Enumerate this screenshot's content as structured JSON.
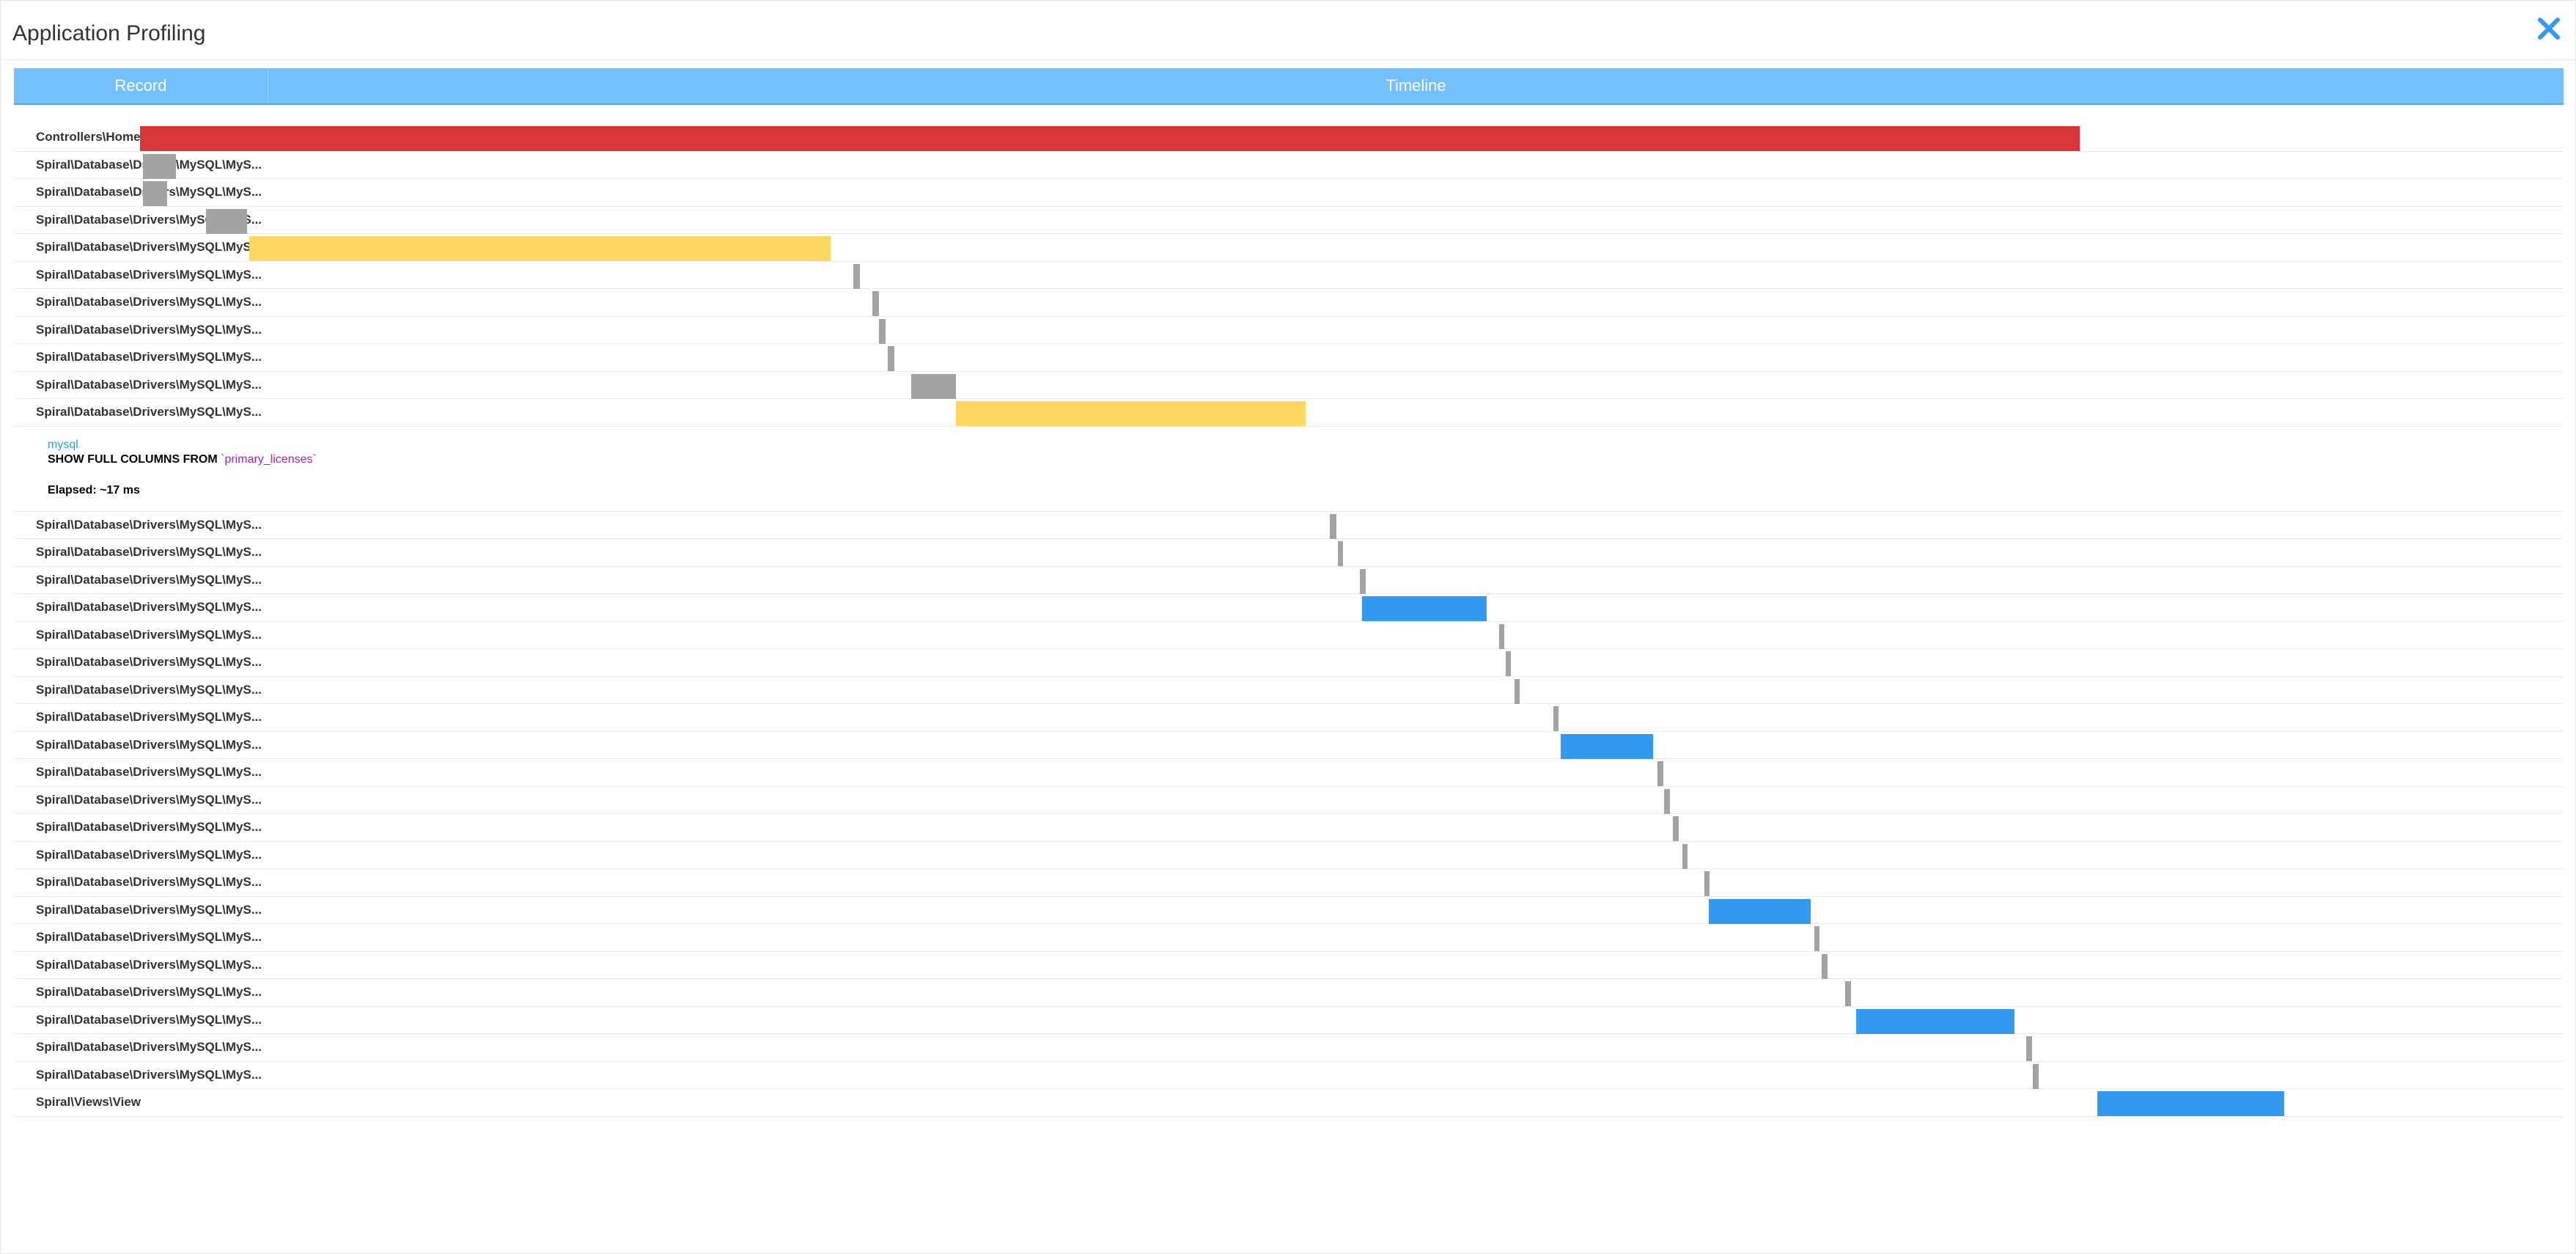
{
  "window": {
    "title": "Application Profiling",
    "close_icon": "close-icon"
  },
  "columns": {
    "record": "Record",
    "timeline": "Timeline"
  },
  "colors": {
    "header": "#74c0fc",
    "controller": "#d63638",
    "slow": "#ffd863",
    "fast": "#a3a3a3",
    "normal": "#339af0",
    "close": "#339af0"
  },
  "timeline_scale": {
    "min": 0,
    "max": 100
  },
  "rows_before": [
    {
      "label": "Controllers\\HomeController",
      "start": 5.67,
      "end": 93.0,
      "kind": "controller"
    },
    {
      "label": "Spiral\\Database\\Drivers\\MySQL\\MyS...",
      "start": 5.8,
      "end": 7.3,
      "kind": "fast"
    },
    {
      "label": "Spiral\\Database\\Drivers\\MySQL\\MyS...",
      "start": 5.8,
      "end": 6.9,
      "kind": "fast"
    },
    {
      "label": "Spiral\\Database\\Drivers\\MySQL\\MyS...",
      "start": 8.65,
      "end": 10.5,
      "kind": "fast"
    },
    {
      "label": "Spiral\\Database\\Drivers\\MySQL\\MyS...",
      "start": 10.6,
      "end": 36.75,
      "kind": "slow"
    },
    {
      "label": "Spiral\\Database\\Drivers\\MySQL\\MyS...",
      "start": 37.8,
      "end": 38.1,
      "kind": "fast"
    },
    {
      "label": "Spiral\\Database\\Drivers\\MySQL\\MyS...",
      "start": 38.65,
      "end": 38.95,
      "kind": "fast"
    },
    {
      "label": "Spiral\\Database\\Drivers\\MySQL\\MyS...",
      "start": 38.95,
      "end": 39.25,
      "kind": "fast"
    },
    {
      "label": "Spiral\\Database\\Drivers\\MySQL\\MyS...",
      "start": 39.35,
      "end": 39.65,
      "kind": "fast"
    },
    {
      "label": "Spiral\\Database\\Drivers\\MySQL\\MyS...",
      "start": 40.4,
      "end": 42.4,
      "kind": "fast"
    },
    {
      "label": "Spiral\\Database\\Drivers\\MySQL\\MyS...",
      "start": 42.4,
      "end": 58.15,
      "kind": "slow"
    }
  ],
  "detail": {
    "driver": "mysql",
    "query_prefix": "SHOW FULL COLUMNS FROM ",
    "query_table": "`primary_licenses`",
    "elapsed": "Elapsed: ~17 ms"
  },
  "rows_after": [
    {
      "label": "Spiral\\Database\\Drivers\\MySQL\\MyS...",
      "start": 59.25,
      "end": 59.55,
      "kind": "fast"
    },
    {
      "label": "Spiral\\Database\\Drivers\\MySQL\\MyS...",
      "start": 59.6,
      "end": 59.85,
      "kind": "fast"
    },
    {
      "label": "Spiral\\Database\\Drivers\\MySQL\\MyS...",
      "start": 60.6,
      "end": 60.85,
      "kind": "fast"
    },
    {
      "label": "Spiral\\Database\\Drivers\\MySQL\\MyS...",
      "start": 60.7,
      "end": 66.3,
      "kind": "normal"
    },
    {
      "label": "Spiral\\Database\\Drivers\\MySQL\\MyS...",
      "start": 66.85,
      "end": 67.1,
      "kind": "fast"
    },
    {
      "label": "Spiral\\Database\\Drivers\\MySQL\\MyS...",
      "start": 67.15,
      "end": 67.4,
      "kind": "fast"
    },
    {
      "label": "Spiral\\Database\\Drivers\\MySQL\\MyS...",
      "start": 67.55,
      "end": 67.8,
      "kind": "fast"
    },
    {
      "label": "Spiral\\Database\\Drivers\\MySQL\\MyS...",
      "start": 69.3,
      "end": 69.55,
      "kind": "fast"
    },
    {
      "label": "Spiral\\Database\\Drivers\\MySQL\\MyS...",
      "start": 69.65,
      "end": 73.8,
      "kind": "normal"
    },
    {
      "label": "Spiral\\Database\\Drivers\\MySQL\\MyS...",
      "start": 74.0,
      "end": 74.25,
      "kind": "fast"
    },
    {
      "label": "Spiral\\Database\\Drivers\\MySQL\\MyS...",
      "start": 74.3,
      "end": 74.55,
      "kind": "fast"
    },
    {
      "label": "Spiral\\Database\\Drivers\\MySQL\\MyS...",
      "start": 74.7,
      "end": 74.95,
      "kind": "fast"
    },
    {
      "label": "Spiral\\Database\\Drivers\\MySQL\\MyS...",
      "start": 75.1,
      "end": 75.35,
      "kind": "fast"
    },
    {
      "label": "Spiral\\Database\\Drivers\\MySQL\\MyS...",
      "start": 76.1,
      "end": 76.35,
      "kind": "fast"
    },
    {
      "label": "Spiral\\Database\\Drivers\\MySQL\\MyS...",
      "start": 76.3,
      "end": 80.9,
      "kind": "normal"
    },
    {
      "label": "Spiral\\Database\\Drivers\\MySQL\\MyS...",
      "start": 81.05,
      "end": 81.3,
      "kind": "fast"
    },
    {
      "label": "Spiral\\Database\\Drivers\\MySQL\\MyS...",
      "start": 81.4,
      "end": 81.65,
      "kind": "fast"
    },
    {
      "label": "Spiral\\Database\\Drivers\\MySQL\\MyS...",
      "start": 82.45,
      "end": 82.7,
      "kind": "fast"
    },
    {
      "label": "Spiral\\Database\\Drivers\\MySQL\\MyS...",
      "start": 82.95,
      "end": 90.05,
      "kind": "normal"
    },
    {
      "label": "Spiral\\Database\\Drivers\\MySQL\\MyS...",
      "start": 90.6,
      "end": 90.85,
      "kind": "fast"
    },
    {
      "label": "Spiral\\Database\\Drivers\\MySQL\\MyS...",
      "start": 90.9,
      "end": 91.15,
      "kind": "fast"
    },
    {
      "label": "Spiral\\Views\\View",
      "start": 93.8,
      "end": 102.2,
      "kind": "normal"
    }
  ]
}
